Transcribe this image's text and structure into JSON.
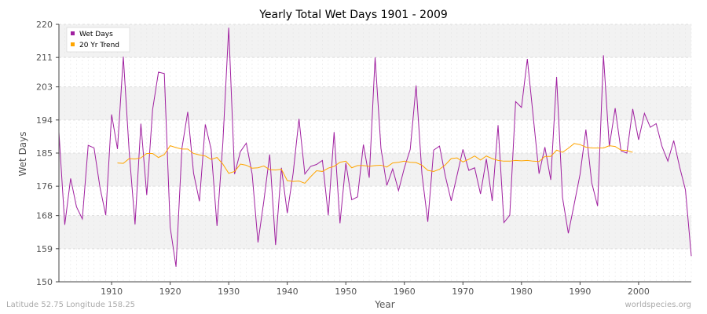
{
  "footer": {
    "location": "Latitude 52.75 Longitude 158.25",
    "source": "worldspecies.org"
  },
  "colors": {
    "wet_days": "#a020a0",
    "trend": "#ffa500",
    "band": "#f2f2f2",
    "grid": "#dddddd"
  },
  "chart_data": {
    "type": "line",
    "title": "Yearly Total Wet Days 1901 - 2009",
    "xlabel": "Year",
    "ylabel": "Wet Days",
    "xlim": [
      1901,
      2009
    ],
    "ylim": [
      150,
      220
    ],
    "yticks": [
      "150",
      "159",
      "168",
      "176",
      "185",
      "194",
      "203",
      "211",
      "220"
    ],
    "xticks": [
      "1910",
      "1920",
      "1930",
      "1940",
      "1950",
      "1960",
      "1970",
      "1980",
      "1990",
      "2000"
    ],
    "legend_position": "top-left",
    "grid": true,
    "series": [
      {
        "name": "Wet Days",
        "x_start": 1901,
        "values": [
          190.7,
          165.5,
          178.1,
          170.4,
          167.1,
          187.1,
          186.4,
          175.8,
          168.1,
          195.5,
          186.1,
          211.2,
          185.4,
          165.6,
          193.0,
          173.6,
          196.8,
          207.0,
          206.6,
          164.9,
          154.1,
          186.2,
          196.2,
          179.5,
          171.9,
          192.8,
          186.0,
          165.2,
          187.8,
          219.1,
          179.3,
          185.4,
          187.7,
          179.3,
          160.7,
          172.0,
          184.6,
          160.0,
          181.0,
          168.7,
          179.5,
          194.3,
          179.3,
          181.4,
          181.9,
          183.0,
          168.1,
          190.7,
          165.9,
          182.3,
          172.3,
          173.1,
          187.3,
          178.3,
          211.0,
          186.3,
          176.2,
          180.7,
          174.8,
          181.0,
          186.0,
          203.4,
          179.3,
          166.3,
          185.8,
          186.9,
          178.7,
          172.0,
          179.0,
          186.0,
          180.3,
          181.0,
          173.9,
          183.4,
          172.0,
          192.6,
          166.1,
          168.1,
          199.0,
          197.4,
          210.6,
          195.0,
          179.4,
          186.6,
          177.7,
          205.7,
          173.0,
          163.2,
          171.1,
          179.2,
          191.4,
          176.9,
          170.6,
          211.6,
          186.8,
          197.2,
          185.6,
          185.0,
          197.0,
          188.6,
          195.8,
          192.0,
          193.0,
          186.8,
          182.8,
          188.4,
          181.3,
          175.0,
          157.0
        ]
      },
      {
        "name": "20 Yr Trend",
        "x_start": 1911,
        "values": [
          182.3,
          182.2,
          183.5,
          183.4,
          183.7,
          184.9,
          184.9,
          183.8,
          184.6,
          187.0,
          186.5,
          186.1,
          186.1,
          184.9,
          184.5,
          184.2,
          183.3,
          183.8,
          182.0,
          179.5,
          180.0,
          182.0,
          181.7,
          180.9,
          181.0,
          181.5,
          180.5,
          180.4,
          180.6,
          177.5,
          177.3,
          177.4,
          176.8,
          178.6,
          180.2,
          180.0,
          180.9,
          181.4,
          182.5,
          182.8,
          181.0,
          181.6,
          181.6,
          181.4,
          181.6,
          181.7,
          181.2,
          182.3,
          182.5,
          182.8,
          182.5,
          182.4,
          181.7,
          180.3,
          180.0,
          180.6,
          181.8,
          183.5,
          183.7,
          182.6,
          183.3,
          184.2,
          183.1,
          184.2,
          183.5,
          183.0,
          182.8,
          182.8,
          183.0,
          182.9,
          183.0,
          182.8,
          182.7,
          184.1,
          184.1,
          185.8,
          185.2,
          186.3,
          187.6,
          187.3,
          186.6,
          186.4,
          186.4,
          186.4,
          187.0,
          186.8,
          185.8,
          185.7,
          185.2
        ]
      }
    ]
  }
}
